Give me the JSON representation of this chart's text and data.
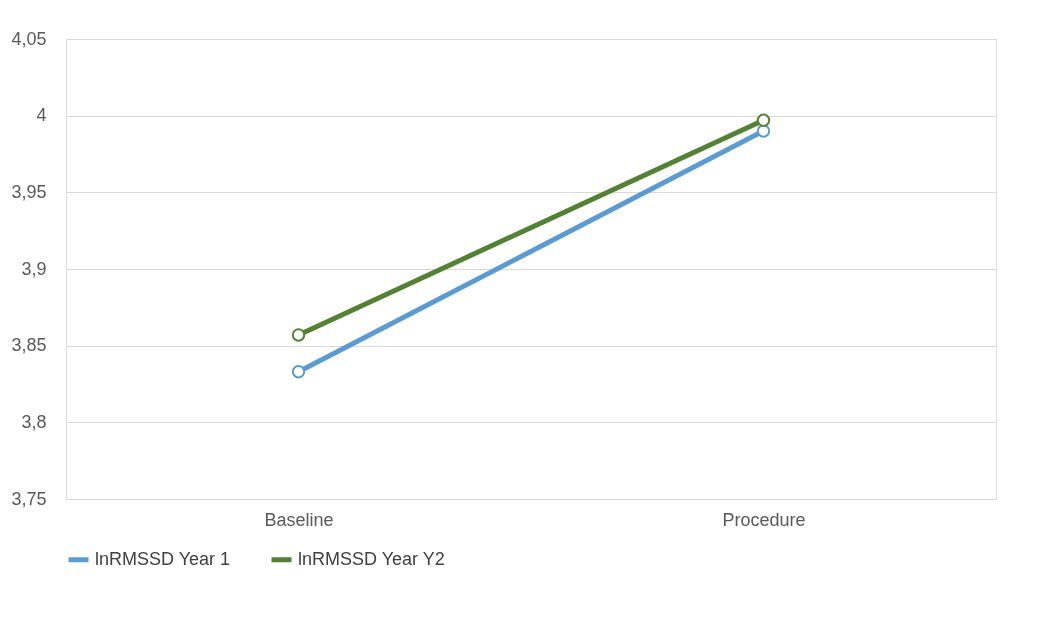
{
  "chart_data": {
    "type": "line",
    "categories": [
      "Baseline",
      "Procedure"
    ],
    "series": [
      {
        "name": "lnRMSSD Year 1",
        "color": "#5b9bd5",
        "values": [
          3.833,
          3.99
        ]
      },
      {
        "name": "lnRMSSD Year Y2",
        "color": "#548235",
        "values": [
          3.857,
          3.997
        ]
      }
    ],
    "ylim": [
      3.75,
      4.05
    ],
    "yticks": [
      {
        "value": 3.75,
        "label": "3,75"
      },
      {
        "value": 3.8,
        "label": "3,8"
      },
      {
        "value": 3.85,
        "label": "3,85"
      },
      {
        "value": 3.9,
        "label": "3,9"
      },
      {
        "value": 3.95,
        "label": "3,95"
      },
      {
        "value": 4,
        "label": "4"
      },
      {
        "value": 4.05,
        "label": "4,05"
      }
    ],
    "grid": "y",
    "legend": "bottom",
    "marker": "circle",
    "line_style": "solid"
  }
}
